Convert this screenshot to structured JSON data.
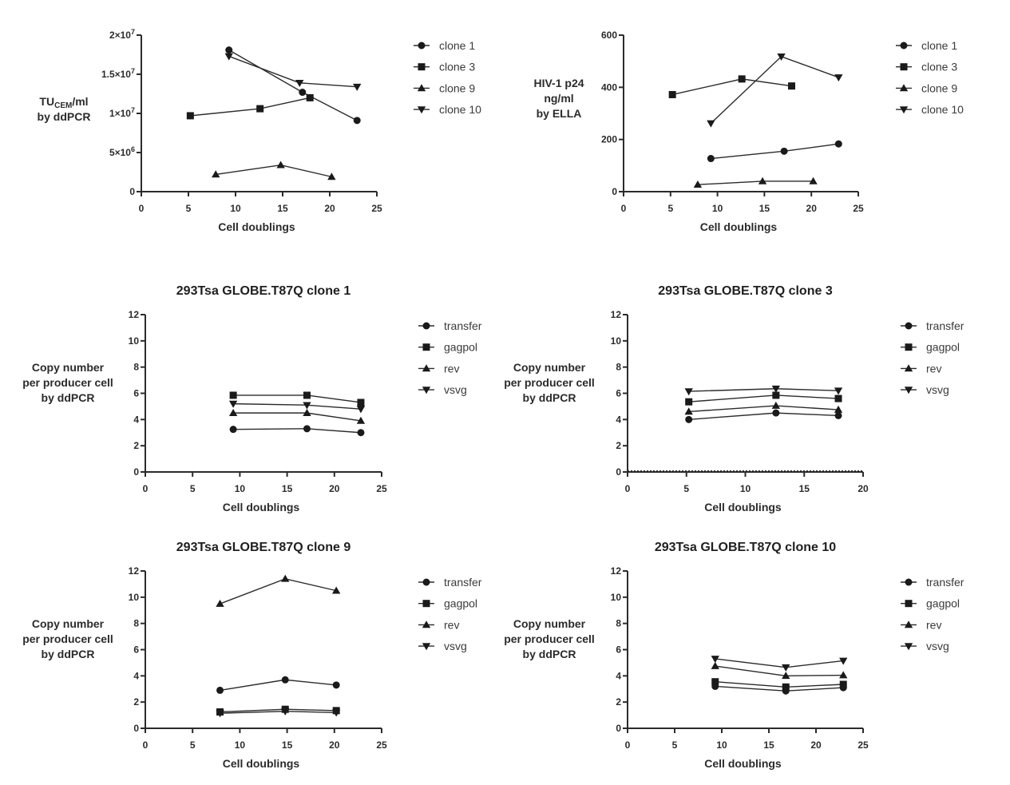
{
  "chart_data": [
    {
      "type": "line",
      "id": "titer",
      "title": "",
      "xlabel": "Cell doublings",
      "ylabel_lines": [
        "TU_CEM/ml",
        "by ddPCR"
      ],
      "ylabel_main": "TU",
      "ylabel_sub": "CEM",
      "ylabel_rest": "/ml",
      "ylabel_line2": "by ddPCR",
      "xlim": [
        0,
        25
      ],
      "ylim": [
        0,
        20000000
      ],
      "xticks": [
        0,
        5,
        10,
        15,
        20,
        25
      ],
      "yticks": [
        0,
        5000000,
        10000000,
        15000000,
        20000000
      ],
      "ytick_labels": [
        "0",
        "5×10⁶",
        "1×10⁷",
        "1.5×10⁷",
        "2×10⁷"
      ],
      "legend_position": "right",
      "grid": false,
      "series": [
        {
          "name": "clone 1",
          "marker": "circle",
          "x": [
            9.3,
            17.1,
            22.9
          ],
          "y": [
            18100000,
            12700000,
            9100000
          ]
        },
        {
          "name": "clone 3",
          "marker": "square",
          "x": [
            5.2,
            12.6,
            17.9
          ],
          "y": [
            9700000,
            10600000,
            12000000
          ]
        },
        {
          "name": "clone 9",
          "marker": "triangle-up",
          "x": [
            7.9,
            14.8,
            20.2
          ],
          "y": [
            2200000,
            3400000,
            1900000
          ]
        },
        {
          "name": "clone 10",
          "marker": "triangle-down",
          "x": [
            9.3,
            16.8,
            22.9
          ],
          "y": [
            17300000,
            13900000,
            13400000
          ]
        }
      ]
    },
    {
      "type": "line",
      "id": "p24",
      "title": "",
      "xlabel": "Cell doublings",
      "ylabel_lines": [
        "HIV-1 p24",
        "ng/ml",
        "by ELLA"
      ],
      "xlim": [
        0,
        25
      ],
      "ylim": [
        0,
        600
      ],
      "xticks": [
        0,
        5,
        10,
        15,
        20,
        25
      ],
      "yticks": [
        0,
        200,
        400,
        600
      ],
      "ytick_labels": [
        "0",
        "200",
        "400",
        "600"
      ],
      "legend_position": "right",
      "grid": false,
      "series": [
        {
          "name": "clone 1",
          "marker": "circle",
          "x": [
            9.3,
            17.1,
            22.9
          ],
          "y": [
            127,
            155,
            183
          ]
        },
        {
          "name": "clone 3",
          "marker": "square",
          "x": [
            5.2,
            12.6,
            17.9
          ],
          "y": [
            372,
            432,
            405
          ]
        },
        {
          "name": "clone 9",
          "marker": "triangle-up",
          "x": [
            7.9,
            14.8,
            20.2
          ],
          "y": [
            27,
            40,
            40
          ]
        },
        {
          "name": "clone 10",
          "marker": "triangle-down",
          "x": [
            9.3,
            16.8,
            22.9
          ],
          "y": [
            262,
            518,
            438
          ]
        }
      ]
    },
    {
      "type": "line",
      "id": "cn-clone1",
      "title": "293Tsa GLOBE.T87Q clone 1",
      "xlabel": "Cell doublings",
      "ylabel_lines": [
        "Copy number",
        "per producer cell",
        "by ddPCR"
      ],
      "xlim": [
        0,
        25
      ],
      "ylim": [
        0,
        12
      ],
      "xticks": [
        0,
        5,
        10,
        15,
        20,
        25
      ],
      "yticks": [
        0,
        2,
        4,
        6,
        8,
        10,
        12
      ],
      "ytick_labels": [
        "0",
        "2",
        "4",
        "6",
        "8",
        "10",
        "12"
      ],
      "legend_position": "right",
      "grid": false,
      "series": [
        {
          "name": "transfer",
          "marker": "circle",
          "x": [
            9.3,
            17.1,
            22.8
          ],
          "y": [
            3.25,
            3.3,
            3.0
          ]
        },
        {
          "name": "gagpol",
          "marker": "square",
          "x": [
            9.3,
            17.1,
            22.8
          ],
          "y": [
            5.85,
            5.85,
            5.3
          ]
        },
        {
          "name": "rev",
          "marker": "triangle-up",
          "x": [
            9.3,
            17.1,
            22.8
          ],
          "y": [
            4.5,
            4.5,
            3.9
          ]
        },
        {
          "name": "vsvg",
          "marker": "triangle-down",
          "x": [
            9.3,
            17.1,
            22.8
          ],
          "y": [
            5.2,
            5.1,
            4.8
          ]
        }
      ]
    },
    {
      "type": "line",
      "id": "cn-clone3",
      "title": "293Tsa GLOBE.T87Q clone 3",
      "xlabel": "Cell doublings",
      "ylabel_lines": [
        "Copy number",
        "per producer cell",
        "by ddPCR"
      ],
      "xlim": [
        0,
        20
      ],
      "ylim": [
        0,
        12
      ],
      "xticks": [
        0,
        5,
        10,
        15,
        20
      ],
      "yticks": [
        0,
        2,
        4,
        6,
        8,
        10,
        12
      ],
      "ytick_labels": [
        "0",
        "2",
        "4",
        "6",
        "8",
        "10",
        "12"
      ],
      "zero_line_dotted": true,
      "legend_position": "right",
      "grid": false,
      "series": [
        {
          "name": "transfer",
          "marker": "circle",
          "x": [
            5.2,
            12.6,
            17.9
          ],
          "y": [
            4.0,
            4.5,
            4.3
          ]
        },
        {
          "name": "gagpol",
          "marker": "square",
          "x": [
            5.2,
            12.6,
            17.9
          ],
          "y": [
            5.35,
            5.85,
            5.6
          ]
        },
        {
          "name": "rev",
          "marker": "triangle-up",
          "x": [
            5.2,
            12.6,
            17.9
          ],
          "y": [
            4.6,
            5.05,
            4.75
          ]
        },
        {
          "name": "vsvg",
          "marker": "triangle-down",
          "x": [
            5.2,
            12.6,
            17.9
          ],
          "y": [
            6.15,
            6.35,
            6.2
          ]
        }
      ]
    },
    {
      "type": "line",
      "id": "cn-clone9",
      "title": "293Tsa GLOBE.T87Q clone 9",
      "xlabel": "Cell doublings",
      "ylabel_lines": [
        "Copy number",
        "per producer cell",
        "by ddPCR"
      ],
      "xlim": [
        0,
        25
      ],
      "ylim": [
        0,
        12
      ],
      "xticks": [
        0,
        5,
        10,
        15,
        20,
        25
      ],
      "yticks": [
        0,
        2,
        4,
        6,
        8,
        10,
        12
      ],
      "ytick_labels": [
        "0",
        "2",
        "4",
        "6",
        "8",
        "10",
        "12"
      ],
      "legend_position": "right",
      "grid": false,
      "series": [
        {
          "name": "transfer",
          "marker": "circle",
          "x": [
            7.9,
            14.8,
            20.2
          ],
          "y": [
            2.9,
            3.7,
            3.3
          ]
        },
        {
          "name": "gagpol",
          "marker": "square",
          "x": [
            7.9,
            14.8,
            20.2
          ],
          "y": [
            1.25,
            1.45,
            1.35
          ]
        },
        {
          "name": "rev",
          "marker": "triangle-up",
          "x": [
            7.9,
            14.8,
            20.2
          ],
          "y": [
            9.5,
            11.4,
            10.5
          ]
        },
        {
          "name": "vsvg",
          "marker": "triangle-down",
          "x": [
            7.9,
            14.8,
            20.2
          ],
          "y": [
            1.15,
            1.3,
            1.2
          ]
        }
      ]
    },
    {
      "type": "line",
      "id": "cn-clone10",
      "title": "293Tsa GLOBE.T87Q clone 10",
      "xlabel": "Cell doublings",
      "ylabel_lines": [
        "Copy number",
        "per producer cell",
        "by ddPCR"
      ],
      "xlim": [
        0,
        25
      ],
      "ylim": [
        0,
        12
      ],
      "xticks": [
        0,
        5,
        10,
        15,
        20,
        25
      ],
      "yticks": [
        0,
        2,
        4,
        6,
        8,
        10,
        12
      ],
      "ytick_labels": [
        "0",
        "2",
        "4",
        "6",
        "8",
        "10",
        "12"
      ],
      "legend_position": "right",
      "grid": false,
      "series": [
        {
          "name": "transfer",
          "marker": "circle",
          "x": [
            9.3,
            16.8,
            22.9
          ],
          "y": [
            3.2,
            2.85,
            3.1
          ]
        },
        {
          "name": "gagpol",
          "marker": "square",
          "x": [
            9.3,
            16.8,
            22.9
          ],
          "y": [
            3.55,
            3.15,
            3.35
          ]
        },
        {
          "name": "rev",
          "marker": "triangle-up",
          "x": [
            9.3,
            16.8,
            22.9
          ],
          "y": [
            4.75,
            4.0,
            4.05
          ]
        },
        {
          "name": "vsvg",
          "marker": "triangle-down",
          "x": [
            9.3,
            16.8,
            22.9
          ],
          "y": [
            5.3,
            4.65,
            5.15
          ]
        }
      ]
    }
  ]
}
